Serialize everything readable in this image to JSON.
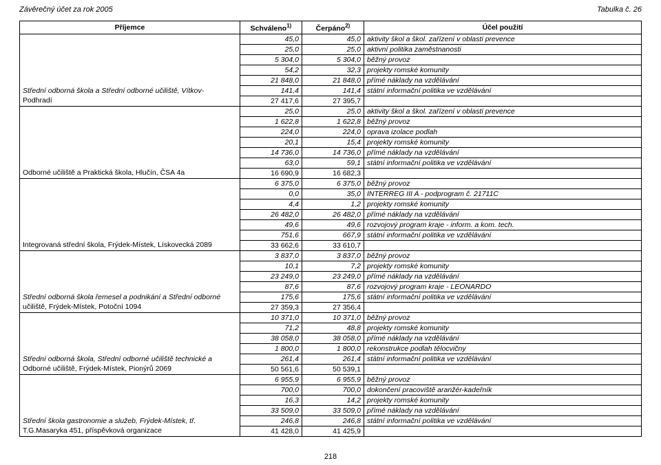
{
  "header": {
    "left": "Závěrečný účet za rok 2005",
    "right": "Tabulka č. 26"
  },
  "columns": {
    "prijemce": "Příjemce",
    "schvaleno": "Schváleno",
    "schvaleno_sup": "1)",
    "cerpano": "Čerpáno",
    "cerpano_sup": "2)",
    "ucel": "Účel použití"
  },
  "footer": "218",
  "blocks": [
    {
      "name_lines": [
        "Střední odborná škola a Střední odborné učiliště, Vítkov-",
        "Podhradí"
      ],
      "rows": [
        {
          "s": "45,0",
          "c": "45,0",
          "u": "aktivity škol a škol. zařízení v oblasti prevence"
        },
        {
          "s": "25,0",
          "c": "25,0",
          "u": "aktivní politika zaměstnanosti"
        },
        {
          "s": "5 304,0",
          "c": "5 304,0",
          "u": "běžný provoz"
        },
        {
          "s": "54,2",
          "c": "32,3",
          "u": "projekty romské komunity"
        },
        {
          "s": "21 848,0",
          "c": "21 848,0",
          "u": "přímé náklady na vzdělávání"
        },
        {
          "s": "141,4",
          "c": "141,4",
          "u": "státní informační politika ve vzdělávání"
        }
      ],
      "total": {
        "s": "27 417,6",
        "c": "27 395,7"
      }
    },
    {
      "name_lines": [
        "Odborné učiliště a Praktická škola, Hlučín, ČSA 4a"
      ],
      "rows": [
        {
          "s": "25,0",
          "c": "25,0",
          "u": "aktivity škol a škol. zařízení v oblasti prevence"
        },
        {
          "s": "1 622,8",
          "c": "1 622,8",
          "u": "běžný provoz"
        },
        {
          "s": "224,0",
          "c": "224,0",
          "u": "oprava izolace podlah"
        },
        {
          "s": "20,1",
          "c": "15,4",
          "u": "projekty romské komunity"
        },
        {
          "s": "14 736,0",
          "c": "14 736,0",
          "u": "přímé náklady na vzdělávání"
        },
        {
          "s": "63,0",
          "c": "59,1",
          "u": "státní informační politika ve vzdělávání"
        }
      ],
      "total": {
        "s": "16 690,9",
        "c": "16 682,3"
      }
    },
    {
      "name_lines": [
        "Integrovaná střední škola, Frýdek-Místek, Lískovecká 2089"
      ],
      "rows": [
        {
          "s": "6 375,0",
          "c": "6 375,0",
          "u": "běžný provoz"
        },
        {
          "s": "0,0",
          "c": "35,0",
          "u": "INTERREG III A - podprogram č. 21711C"
        },
        {
          "s": "4,4",
          "c": "1,2",
          "u": "projekty romské komunity"
        },
        {
          "s": "26 482,0",
          "c": "26 482,0",
          "u": "přímé náklady na vzdělávání"
        },
        {
          "s": "49,6",
          "c": "49,6",
          "u": "rozvojový program kraje - inform. a kom. tech."
        },
        {
          "s": "751,6",
          "c": "667,9",
          "u": "státní informační politika ve vzdělávání"
        }
      ],
      "total": {
        "s": "33 662,6",
        "c": "33 610,7"
      }
    },
    {
      "name_lines": [
        "Střední odborná škola řemesel a podnikání a Střední odborné",
        "učiliště, Frýdek-Místek, Potoční 1094"
      ],
      "rows": [
        {
          "s": "3 837,0",
          "c": "3 837,0",
          "u": "běžný provoz"
        },
        {
          "s": "10,1",
          "c": "7,2",
          "u": "projekty romské komunity"
        },
        {
          "s": "23 249,0",
          "c": "23 249,0",
          "u": "přímé náklady na vzdělávání"
        },
        {
          "s": "87,6",
          "c": "87,6",
          "u": "rozvojový program kraje - LEONARDO"
        },
        {
          "s": "175,6",
          "c": "175,6",
          "u": "státní informační politika ve vzdělávání"
        }
      ],
      "total": {
        "s": "27 359,3",
        "c": "27 356,4"
      }
    },
    {
      "name_lines": [
        "Střední odborná škola, Střední odborné učiliště technické a",
        "Odborné učiliště, Frýdek-Místek, Pionýrů 2069"
      ],
      "rows": [
        {
          "s": "10 371,0",
          "c": "10 371,0",
          "u": "běžný provoz"
        },
        {
          "s": "71,2",
          "c": "48,8",
          "u": "projekty romské komunity"
        },
        {
          "s": "38 058,0",
          "c": "38 058,0",
          "u": "přímé náklady na vzdělávání"
        },
        {
          "s": "1 800,0",
          "c": "1 800,0",
          "u": "rekonstrukce podlah tělocvičny"
        },
        {
          "s": "261,4",
          "c": "261,4",
          "u": "státní informační politika ve vzdělávání"
        }
      ],
      "total": {
        "s": "50 561,6",
        "c": "50 539,1"
      }
    },
    {
      "name_lines": [
        "Střední škola gastronomie a služeb, Frýdek-Místek, tř.",
        "T.G.Masaryka 451,  příspěvková organizace"
      ],
      "rows": [
        {
          "s": "6 955,9",
          "c": "6 955,9",
          "u": "běžný provoz"
        },
        {
          "s": "700,0",
          "c": "700,0",
          "u": "dokončení pracoviště aranžér-kadeřník"
        },
        {
          "s": "16,3",
          "c": "14,2",
          "u": "projekty romské komunity"
        },
        {
          "s": "33 509,0",
          "c": "33 509,0",
          "u": "přímé náklady na vzdělávání"
        },
        {
          "s": "246,8",
          "c": "246,8",
          "u": "státní informační politika ve vzdělávání"
        }
      ],
      "total": {
        "s": "41 428,0",
        "c": "41 425,9"
      }
    }
  ]
}
